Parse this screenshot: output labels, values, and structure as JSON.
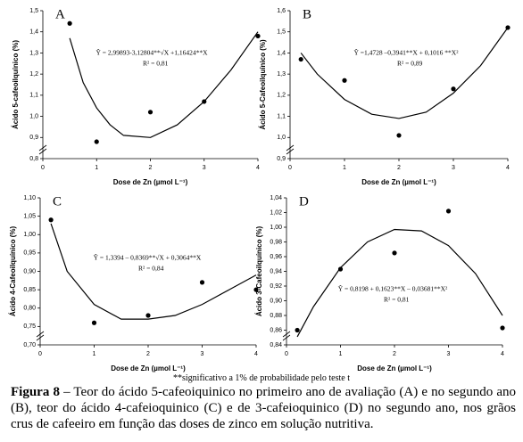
{
  "chart_data": [
    {
      "type": "scatter",
      "panel_label": "A",
      "y_label": "Ácido 5-cafeoilquínico (%)",
      "x_label": "Dose de Zn (µmol L⁻¹)",
      "equation": [
        "Ŷ = 2,99893-3,12804**√X +1,16424**X",
        "R² = 0,81"
      ],
      "xlim": [
        0,
        4
      ],
      "xticks": [
        0,
        1,
        2,
        3,
        4
      ],
      "ylim": [
        0.8,
        1.5
      ],
      "yticks": [
        {
          "value": 0.8,
          "label": "0,8"
        },
        {
          "value": 0.9,
          "label": "0,9"
        },
        {
          "value": 1.0,
          "label": "1,0"
        },
        {
          "value": 1.1,
          "label": "1,1"
        },
        {
          "value": 1.2,
          "label": "1,2"
        },
        {
          "value": 1.3,
          "label": "1,3"
        },
        {
          "value": 1.4,
          "label": "1,4"
        },
        {
          "value": 1.5,
          "label": "1,5"
        }
      ],
      "series": [
        {
          "color": "#000000",
          "x": [
            0.5,
            1,
            2,
            3,
            4
          ],
          "values": [
            1.44,
            0.88,
            1.02,
            1.07,
            1.38
          ]
        }
      ],
      "fit": {
        "color": "#000000",
        "x": [
          0.5,
          0.75,
          1,
          1.25,
          1.5,
          2,
          2.5,
          3,
          3.5,
          4
        ],
        "values": [
          1.37,
          1.16,
          1.04,
          0.96,
          0.91,
          0.9,
          0.96,
          1.07,
          1.22,
          1.4
        ]
      }
    },
    {
      "type": "scatter",
      "panel_label": "B",
      "y_label": "Ácido 5-Cafeoilquínico (%)",
      "x_label": "Dose de Zn (µmol L⁻¹)",
      "equation": [
        "Ŷ =1,4728 –0,3941**X + 0,1016 **X²",
        "R² = 0,89"
      ],
      "xlim": [
        0,
        4
      ],
      "xticks": [
        0,
        1,
        2,
        3,
        4
      ],
      "ylim": [
        0.9,
        1.6
      ],
      "yticks": [
        {
          "value": 0.9,
          "label": "0,9"
        },
        {
          "value": 1.0,
          "label": "1,0"
        },
        {
          "value": 1.1,
          "label": "1,1"
        },
        {
          "value": 1.2,
          "label": "1,2"
        },
        {
          "value": 1.3,
          "label": "1,3"
        },
        {
          "value": 1.4,
          "label": "1,4"
        },
        {
          "value": 1.5,
          "label": "1,5"
        },
        {
          "value": 1.6,
          "label": "1,6"
        }
      ],
      "series": [
        {
          "color": "#000000",
          "x": [
            0.2,
            1,
            2,
            3,
            4
          ],
          "values": [
            1.37,
            1.27,
            1.01,
            1.23,
            1.52
          ]
        }
      ],
      "fit": {
        "color": "#000000",
        "x": [
          0.2,
          0.5,
          1,
          1.5,
          2,
          2.5,
          3,
          3.5,
          4
        ],
        "values": [
          1.4,
          1.3,
          1.18,
          1.11,
          1.09,
          1.12,
          1.21,
          1.34,
          1.52
        ]
      }
    },
    {
      "type": "scatter",
      "panel_label": "C",
      "y_label": "Ácido 4-Cafeoilquínico (%)",
      "x_label": "Dose de Zn (µmol L⁻¹)",
      "equation": [
        "Ŷ = 1,3394 – 0,8369**√X + 0,3064**X",
        "R² = 0,84"
      ],
      "xlim": [
        0,
        4
      ],
      "xticks": [
        0,
        1,
        2,
        3,
        4
      ],
      "ylim": [
        0.7,
        1.1
      ],
      "yticks": [
        {
          "value": 0.7,
          "label": "0,70"
        },
        {
          "value": 0.75,
          "label": "0,75"
        },
        {
          "value": 0.8,
          "label": "0,80"
        },
        {
          "value": 0.85,
          "label": "0,85"
        },
        {
          "value": 0.9,
          "label": "0,90"
        },
        {
          "value": 0.95,
          "label": "0,95"
        },
        {
          "value": 1.0,
          "label": "1,00"
        },
        {
          "value": 1.05,
          "label": "1,05"
        },
        {
          "value": 1.1,
          "label": "1,10"
        }
      ],
      "series": [
        {
          "color": "#000000",
          "x": [
            0.2,
            1,
            2,
            3,
            4
          ],
          "values": [
            1.04,
            0.76,
            0.78,
            0.87,
            0.85
          ]
        }
      ],
      "fit": {
        "color": "#000000",
        "x": [
          0.2,
          0.5,
          1,
          1.5,
          2,
          2.5,
          3,
          3.5,
          4
        ],
        "values": [
          1.03,
          0.9,
          0.81,
          0.77,
          0.77,
          0.78,
          0.81,
          0.85,
          0.89
        ]
      }
    },
    {
      "type": "scatter",
      "panel_label": "D",
      "y_label": "Ácido 3-Cafeoilquínico (%)",
      "x_label": "Dose de Zn (µmol L⁻¹)",
      "equation": [
        "Ŷ = 0,8198 + 0,1623**X – 0,03681**X²",
        "R² = 0,81"
      ],
      "xlim": [
        0,
        4
      ],
      "xticks": [
        0,
        1,
        2,
        3,
        4
      ],
      "ylim": [
        0.84,
        1.04
      ],
      "yticks": [
        {
          "value": 0.84,
          "label": "0,84"
        },
        {
          "value": 0.86,
          "label": "0,86"
        },
        {
          "value": 0.88,
          "label": "0,88"
        },
        {
          "value": 0.9,
          "label": "0,90"
        },
        {
          "value": 0.92,
          "label": "0,92"
        },
        {
          "value": 0.94,
          "label": "0,94"
        },
        {
          "value": 0.96,
          "label": "0,96"
        },
        {
          "value": 0.98,
          "label": "0,98"
        },
        {
          "value": 1.0,
          "label": "1,00"
        },
        {
          "value": 1.02,
          "label": "1,02"
        },
        {
          "value": 1.04,
          "label": "1,04"
        }
      ],
      "series": [
        {
          "color": "#000000",
          "x": [
            0.2,
            1,
            2,
            3,
            4
          ],
          "values": [
            0.86,
            0.943,
            0.965,
            1.022,
            0.863
          ]
        }
      ],
      "fit": {
        "color": "#000000",
        "x": [
          0.2,
          0.5,
          1,
          1.5,
          2,
          2.5,
          3,
          3.5,
          4
        ],
        "values": [
          0.851,
          0.892,
          0.945,
          0.98,
          0.997,
          0.995,
          0.975,
          0.937,
          0.88
        ]
      }
    }
  ],
  "footnote": "**significativo a 1% de probabilidade pelo teste t",
  "caption": {
    "label": "Figura 8",
    "text": "– Teor do ácido 5-cafeoiquinico no primeiro ano de avaliação (A) e no segundo ano (B), teor do ácido 4-cafeioquinico (C) e de 3-cafeioquinico (D) no segundo ano, nos grãos crus de cafeeiro em função das doses de zinco em solução nutritiva."
  }
}
